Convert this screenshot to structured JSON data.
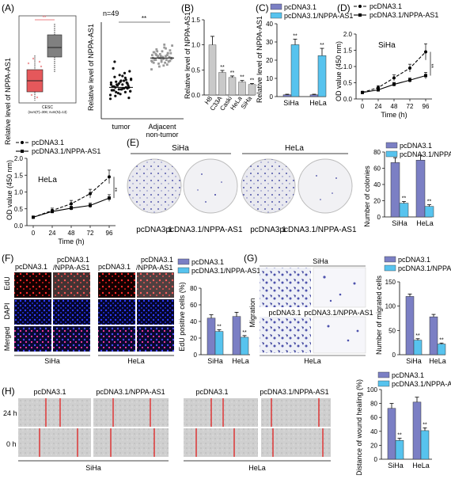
{
  "panels": {
    "A": "(A)",
    "B": "(B)",
    "C": "(C)",
    "D": "(D)",
    "E": "(E)",
    "F": "(F)",
    "G": "(G)",
    "H": "(H)"
  },
  "legend": {
    "ctrl": "pcDNA3.1",
    "nppa": "pcDNA3.1/NPPA-AS1"
  },
  "colors": {
    "ctrl": "#7b7fc4",
    "nppa": "#57c3ee",
    "gray": "#c9c9c9",
    "dot_tumor": "#111111",
    "dot_adj": "#999999",
    "box_tumor": "#e5585b",
    "box_normal": "#808080"
  },
  "panelA": {
    "ylabel": "Relative level of NPPA-AS1",
    "gepia_caption": "CESC",
    "gepia_caption2": "(num(T)=306; num(N)=13)",
    "n_label": "n=49",
    "sig": "**",
    "categories": [
      "tumor",
      "Adjacent",
      "non-tumor"
    ]
  },
  "chart_data": [
    {
      "id": "B",
      "type": "bar",
      "ylabel": "Relative level of NPPA-AS1",
      "categories": [
        "H8",
        "C33A",
        "Caski",
        "HeLa",
        "SiHa"
      ],
      "values": [
        1.0,
        0.45,
        0.35,
        0.26,
        0.21
      ],
      "errors": [
        0.17,
        0.04,
        0.03,
        0.03,
        0.02
      ],
      "sig": [
        "",
        "**",
        "**",
        "**",
        "**"
      ],
      "ylim": [
        0,
        1.5
      ],
      "yticks": [
        "0.0",
        "0.5",
        "1.0",
        "1.5"
      ]
    },
    {
      "id": "C",
      "type": "bar",
      "ylabel": "Relative level of NPPA-AS1",
      "categories": [
        "SiHa",
        "HeLa"
      ],
      "series": [
        {
          "name": "pcDNA3.1",
          "values": [
            1,
            1
          ]
        },
        {
          "name": "pcDNA3.1/NPPA-AS1",
          "values": [
            28.5,
            22.5
          ]
        }
      ],
      "errors": [
        3,
        4
      ],
      "sig": "**",
      "ylim": [
        0,
        40
      ],
      "yticks": [
        "0",
        "10",
        "20",
        "30",
        "40"
      ]
    },
    {
      "id": "D",
      "type": "line",
      "cell": "SiHa",
      "ylabel": "OD value (450 nm)",
      "xlabel": "Time (h)",
      "x": [
        0,
        24,
        48,
        72,
        96
      ],
      "series": [
        {
          "name": "pcDNA3.1",
          "values": [
            0.2,
            0.35,
            0.65,
            0.95,
            1.45
          ],
          "errors": [
            0.03,
            0.06,
            0.09,
            0.12,
            0.25
          ]
        },
        {
          "name": "pcDNA3.1/NPPA-AS1",
          "values": [
            0.2,
            0.28,
            0.45,
            0.58,
            0.72
          ],
          "errors": [
            0.03,
            0.05,
            0.06,
            0.07,
            0.1
          ]
        }
      ],
      "ylim": [
        0,
        2.0
      ],
      "yticks": [
        "0.0",
        "0.5",
        "1.0",
        "1.5",
        "2.0"
      ],
      "sig": "**"
    },
    {
      "id": "D2",
      "type": "line",
      "cell": "HeLa",
      "ylabel": "OD value (450 nm)",
      "xlabel": "Time (h)",
      "x": [
        0,
        24,
        48,
        72,
        96
      ],
      "series": [
        {
          "name": "pcDNA3.1",
          "values": [
            0.25,
            0.45,
            0.65,
            0.95,
            1.45
          ],
          "errors": [
            0.03,
            0.07,
            0.1,
            0.13,
            0.2
          ]
        },
        {
          "name": "pcDNA3.1/NPPA-AS1",
          "values": [
            0.25,
            0.42,
            0.52,
            0.6,
            0.82
          ],
          "errors": [
            0.03,
            0.05,
            0.06,
            0.07,
            0.1
          ]
        }
      ],
      "ylim": [
        0,
        2.0
      ],
      "yticks": [
        "0.0",
        "0.5",
        "1.0",
        "1.5",
        "2.0"
      ],
      "sig": "**"
    },
    {
      "id": "E",
      "type": "bar",
      "ylabel": "Number of colonies",
      "categories": [
        "SiHa",
        "HeLa"
      ],
      "series": [
        {
          "name": "pcDNA3.1",
          "values": [
            67,
            70
          ]
        },
        {
          "name": "pcDNA3.1/NPPA-AS1",
          "values": [
            17,
            13
          ]
        }
      ],
      "errors_ctrl": [
        6,
        6
      ],
      "errors_nppa": [
        2,
        2
      ],
      "sig": "**",
      "ylim": [
        0,
        80
      ],
      "yticks": [
        "0",
        "20",
        "40",
        "60",
        "80"
      ]
    },
    {
      "id": "F",
      "type": "bar",
      "ylabel": "EdU positive cells (%)",
      "categories": [
        "SiHa",
        "HeLa"
      ],
      "series": [
        {
          "name": "pcDNA3.1",
          "values": [
            44,
            46
          ]
        },
        {
          "name": "pcDNA3.1/NPPA-AS1",
          "values": [
            28,
            21
          ]
        }
      ],
      "errors_ctrl": [
        4,
        5
      ],
      "errors_nppa": [
        2,
        2
      ],
      "sig": "**",
      "ylim": [
        0,
        80
      ],
      "yticks": [
        "0",
        "20",
        "40",
        "60",
        "80"
      ]
    },
    {
      "id": "G",
      "type": "bar",
      "ylabel": "Number of migrated cells",
      "categories": [
        "SiHa",
        "HeLa"
      ],
      "series": [
        {
          "name": "pcDNA3.1",
          "values": [
            120,
            78
          ]
        },
        {
          "name": "pcDNA3.1/NPPA-AS1",
          "values": [
            30,
            22
          ]
        }
      ],
      "errors_ctrl": [
        5,
        5
      ],
      "errors_nppa": [
        3,
        2
      ],
      "sig": "**",
      "ylim": [
        0,
        150
      ],
      "yticks": [
        "0",
        "50",
        "100",
        "150"
      ]
    },
    {
      "id": "H",
      "type": "bar",
      "ylabel": "Distance of wound healing (%)",
      "categories": [
        "SiHa",
        "HeLa"
      ],
      "series": [
        {
          "name": "pcDNA3.1",
          "values": [
            73,
            82
          ]
        },
        {
          "name": "pcDNA3.1/NPPA-AS1",
          "values": [
            27,
            41
          ]
        }
      ],
      "errors_ctrl": [
        7,
        7
      ],
      "errors_nppa": [
        3,
        4
      ],
      "sig": "**",
      "ylim": [
        0,
        100
      ],
      "yticks": [
        "0",
        "20",
        "40",
        "60",
        "80",
        "100"
      ]
    }
  ],
  "panelE": {
    "cells": [
      "SiHa",
      "HeLa"
    ],
    "cond": [
      "pcDNA3.1",
      "pcDNA3.1/NPPA-AS1"
    ]
  },
  "panelF": {
    "rows": [
      "EdU",
      "DAPI",
      "Merged"
    ],
    "cols": [
      "pcDNA3.1",
      "pcDNA3.1",
      "/NPPA-AS1"
    ],
    "cells": [
      "SiHa",
      "HeLa"
    ],
    "hdr": [
      "pcDNA3.1",
      "pcDNA3.1 /NPPA-AS1",
      "pcDNA3.1",
      "pcDNA3.1 /NPPA-AS1"
    ]
  },
  "panelG": {
    "cells": [
      "SiHa",
      "HeLa"
    ],
    "side": "Migration",
    "cond": [
      "pcDNA3.1",
      "pcDNA3.1/NPPA-AS1"
    ]
  },
  "panelH": {
    "times": [
      "24 h",
      "0 h"
    ],
    "cells": [
      "SiHa",
      "HeLa"
    ],
    "cond": [
      "pcDNA3.1",
      "pcDNA3.1/NPPA-AS1"
    ]
  }
}
